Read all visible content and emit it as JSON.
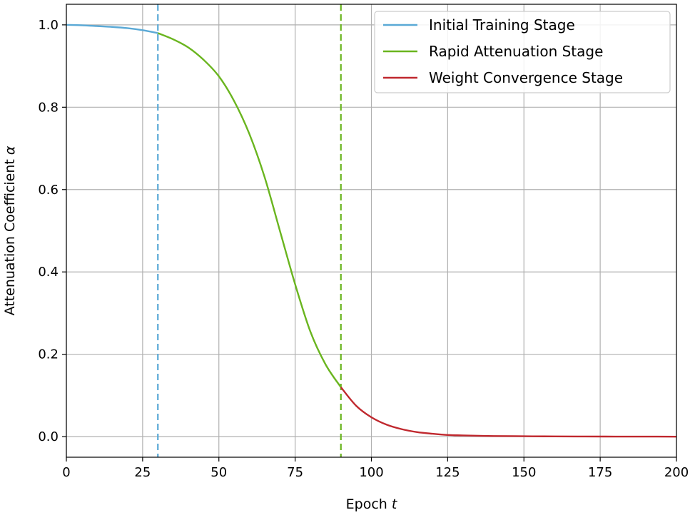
{
  "chart_data": {
    "type": "line",
    "title": "",
    "xlabel": "Epoch",
    "xlabel_var": "t",
    "ylabel": "Attenuation Coefficient",
    "ylabel_var": "α",
    "xlim": [
      0,
      200
    ],
    "ylim": [
      -0.05,
      1.05
    ],
    "x_ticks": [
      0,
      25,
      50,
      75,
      100,
      125,
      150,
      175,
      200
    ],
    "x_tick_labels": [
      "0",
      "25",
      "50",
      "75",
      "100",
      "125",
      "150",
      "175",
      "200"
    ],
    "y_ticks": [
      0.0,
      0.2,
      0.4,
      0.6,
      0.8,
      1.0
    ],
    "y_tick_labels": [
      "0.0",
      "0.2",
      "0.4",
      "0.6",
      "0.8",
      "1.0"
    ],
    "grid": true,
    "legend_position": "top-right",
    "series": [
      {
        "name": "Initial Training Stage",
        "color": "#5aa9d6",
        "x": [
          0,
          5,
          10,
          15,
          20,
          25,
          30
        ],
        "y": [
          1.0,
          0.999,
          0.997,
          0.995,
          0.992,
          0.987,
          0.98
        ]
      },
      {
        "name": "Rapid Attenuation Stage",
        "color": "#6ab51f",
        "x": [
          30,
          35,
          40,
          45,
          50,
          55,
          60,
          65,
          70,
          75,
          80,
          85,
          90
        ],
        "y": [
          0.98,
          0.965,
          0.945,
          0.915,
          0.875,
          0.815,
          0.735,
          0.63,
          0.5,
          0.37,
          0.255,
          0.175,
          0.12
        ]
      },
      {
        "name": "Weight Convergence Stage",
        "color": "#c0282e",
        "x": [
          90,
          95,
          100,
          105,
          110,
          115,
          120,
          125,
          130,
          140,
          150,
          160,
          170,
          180,
          190,
          200
        ],
        "y": [
          0.12,
          0.075,
          0.047,
          0.029,
          0.018,
          0.011,
          0.007,
          0.004,
          0.003,
          0.0015,
          0.001,
          0.0005,
          0.0003,
          0.0002,
          0.0001,
          0.0
        ]
      }
    ],
    "vlines": [
      {
        "x": 30,
        "color": "#5aa9d6",
        "style": "dashed"
      },
      {
        "x": 90,
        "color": "#6ab51f",
        "style": "dashed"
      }
    ]
  }
}
